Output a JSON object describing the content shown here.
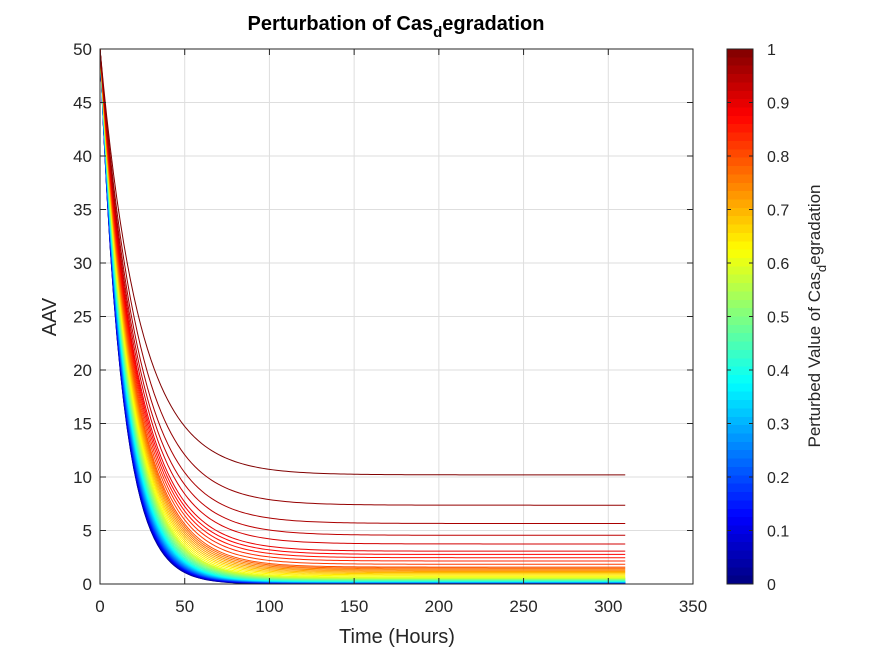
{
  "chart_data": {
    "type": "line",
    "title": {
      "main": "Perturbation of Cas",
      "sub": "d",
      "rest": "egradation"
    },
    "xlabel": "Time (Hours)",
    "ylabel": "AAV",
    "xlim": [
      0,
      350
    ],
    "ylim": [
      0,
      50
    ],
    "xticks": [
      0,
      50,
      100,
      150,
      200,
      250,
      300,
      350
    ],
    "yticks": [
      0,
      5,
      10,
      15,
      20,
      25,
      30,
      35,
      40,
      45,
      50
    ],
    "grid": true,
    "x_start": 0,
    "x_end": 311,
    "y_start": 50,
    "series_count": 50,
    "series_parameter": "perturbed value, 0 to 1",
    "final_value_samples": [
      {
        "p": 1.0,
        "y_end": 10.2
      },
      {
        "p": 0.98,
        "y_end": 7.4
      },
      {
        "p": 0.96,
        "y_end": 5.7
      },
      {
        "p": 0.94,
        "y_end": 4.6
      },
      {
        "p": 0.92,
        "y_end": 3.8
      },
      {
        "p": 0.9,
        "y_end": 3.1
      },
      {
        "p": 0.8,
        "y_end": 1.6
      },
      {
        "p": 0.6,
        "y_end": 0.6
      },
      {
        "p": 0.4,
        "y_end": 0.25
      },
      {
        "p": 0.0,
        "y_end": 0.0
      }
    ],
    "colorbar": {
      "colormap": "jet",
      "label": {
        "main": "Perturbed Value of Cas",
        "sub": "d",
        "rest": "egradation"
      },
      "range": [
        0,
        1
      ],
      "ticks": [
        0,
        0.1,
        0.2,
        0.3,
        0.4,
        0.5,
        0.6,
        0.7,
        0.8,
        0.9,
        1
      ],
      "tick_labels": [
        "0",
        "0.1",
        "0.2",
        "0.3",
        "0.4",
        "0.5",
        "0.6",
        "0.7",
        "0.8",
        "0.9",
        "1"
      ]
    }
  }
}
